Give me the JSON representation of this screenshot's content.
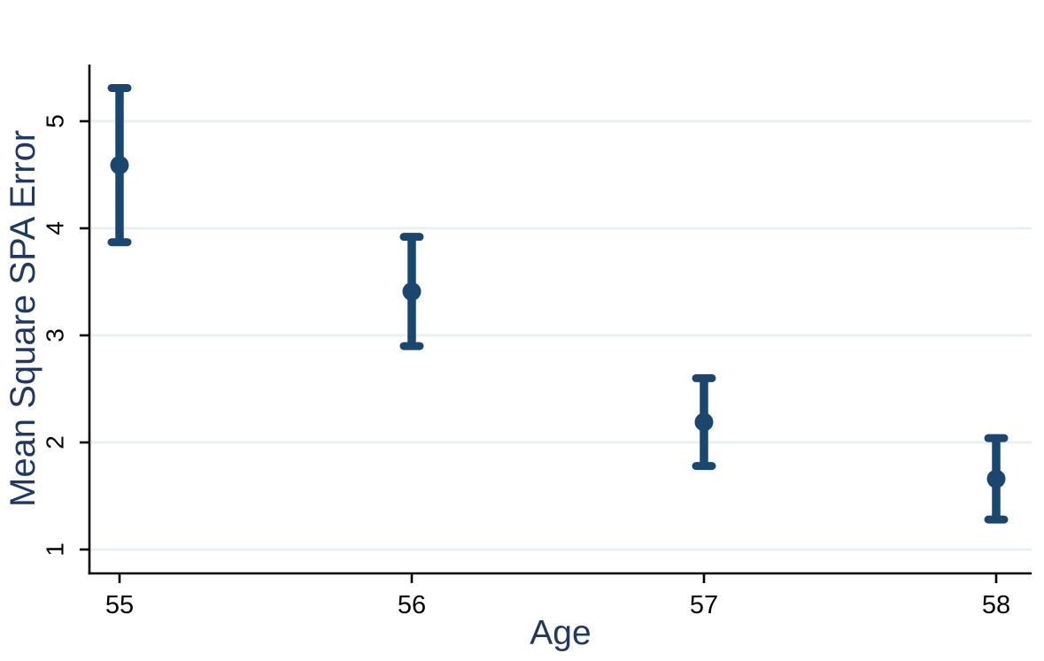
{
  "chart_data": {
    "type": "scatter",
    "subtype": "point-estimate-with-error-bars",
    "title": "",
    "xlabel": "Age",
    "ylabel": "Mean Square SPA Error",
    "x": [
      55,
      56,
      57,
      58
    ],
    "series": [
      {
        "name": "Mean Square SPA Error",
        "values": [
          4.59,
          3.41,
          2.19,
          1.66
        ],
        "ci_low": [
          3.87,
          2.9,
          1.78,
          1.28
        ],
        "ci_high": [
          5.31,
          3.92,
          2.6,
          2.04
        ]
      }
    ],
    "xticks": [
      "55",
      "56",
      "57",
      "58"
    ],
    "yticks": [
      "1",
      "2",
      "3",
      "4",
      "5"
    ],
    "xlim": [
      54.9,
      58.12
    ],
    "ylim": [
      0.78,
      5.53
    ],
    "grid": "horizontal-only",
    "legend": "none",
    "colors": {
      "marker": "#1A476F",
      "error_bar": "#1A476F",
      "grid_line": "#E9EFF2",
      "axis_line": "#000000",
      "tick_label": "#000000",
      "axis_title": "#1F3864",
      "background": "#FFFFFF"
    }
  }
}
